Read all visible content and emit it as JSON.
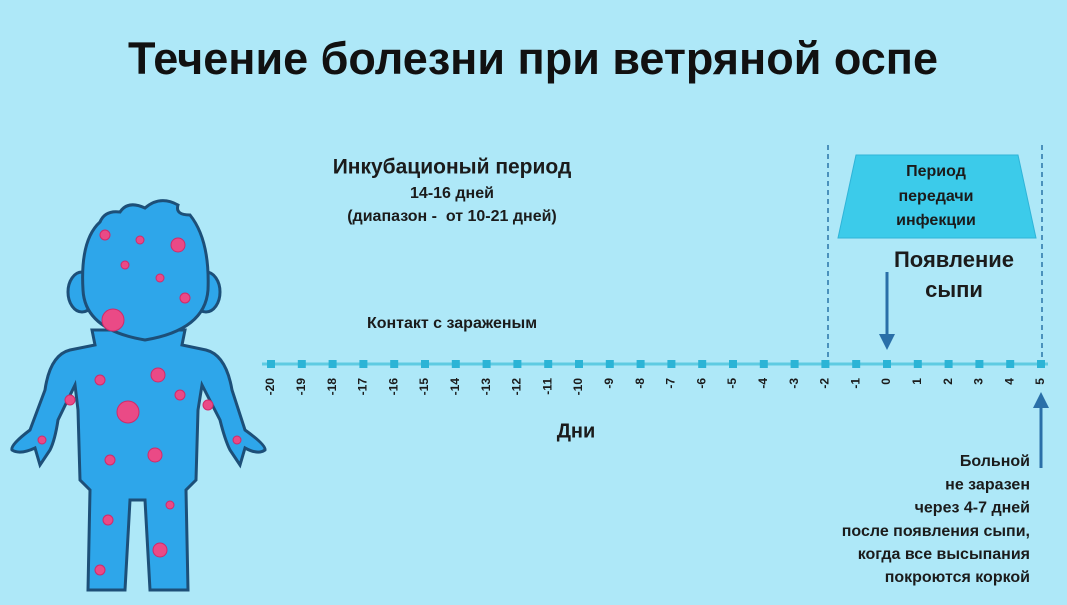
{
  "title": "Течение болезни при ветряной оспе",
  "incubation": {
    "title": "Инкубационый период",
    "duration": "14-16 дней",
    "range": "(диапазон -  от 10-21 дней)"
  },
  "contact": "Контакт с зараженым",
  "transmission_period": {
    "lines": [
      "Период",
      "передачи",
      "инфекции"
    ]
  },
  "rash_onset": {
    "lines": [
      "Появление",
      "сыпи"
    ]
  },
  "axis": {
    "label": "Дни",
    "ticks": [
      -20,
      -19,
      -18,
      -17,
      -16,
      -15,
      -14,
      -13,
      -12,
      -11,
      -10,
      -9,
      -8,
      -7,
      -6,
      -5,
      -4,
      -3,
      -2,
      -1,
      0,
      1,
      2,
      3,
      4,
      5
    ]
  },
  "recovery_note": {
    "lines": [
      "Больной",
      "не заразен",
      "через 4-7 дней",
      "после появления сыпи,",
      "когда все высыпания",
      "покроются коркой"
    ]
  }
}
